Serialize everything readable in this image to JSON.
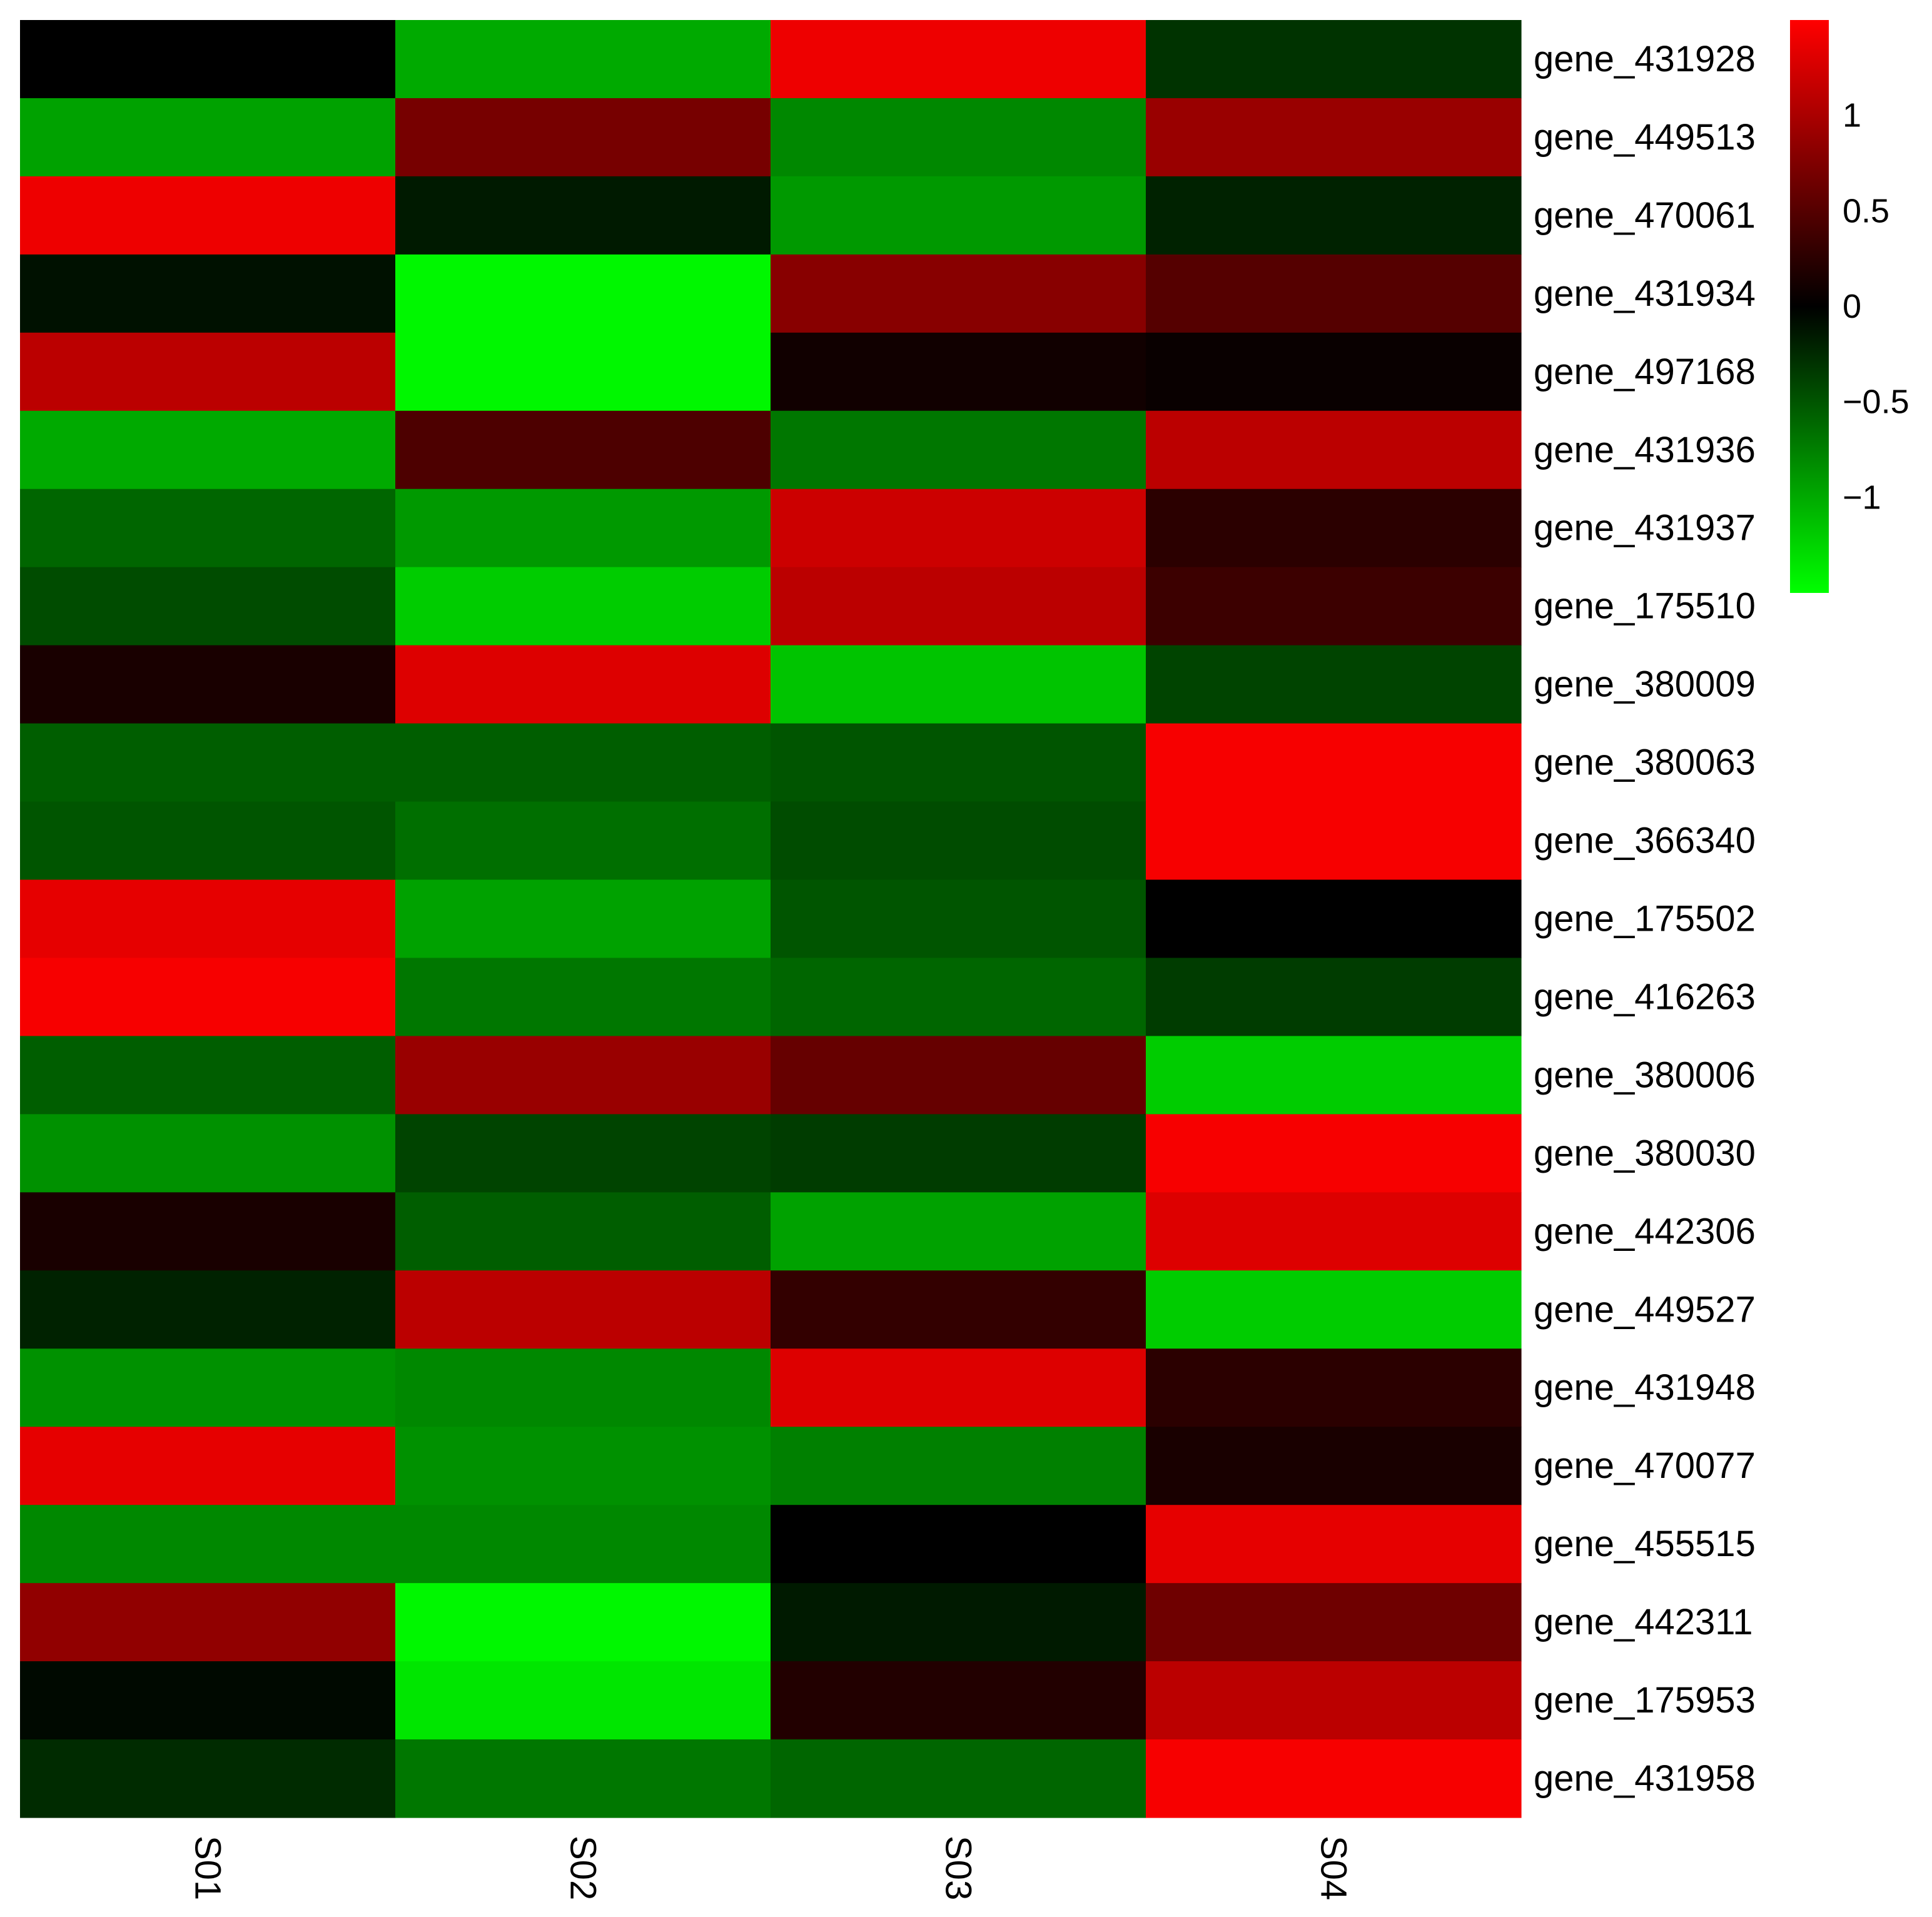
{
  "chart_data": {
    "type": "heatmap",
    "title": "",
    "xlabel": "",
    "ylabel": "",
    "columns": [
      "S01",
      "S02",
      "S03",
      "S04"
    ],
    "rows": [
      "gene_431928",
      "gene_449513",
      "gene_470061",
      "gene_431934",
      "gene_497168",
      "gene_431936",
      "gene_431937",
      "gene_175510",
      "gene_380009",
      "gene_380063",
      "gene_366340",
      "gene_175502",
      "gene_416263",
      "gene_380006",
      "gene_380030",
      "gene_442306",
      "gene_449527",
      "gene_431948",
      "gene_470077",
      "gene_455515",
      "gene_442311",
      "gene_175953",
      "gene_431958"
    ],
    "values": [
      [
        0.0,
        -1.0,
        1.4,
        -0.3
      ],
      [
        -0.95,
        0.7,
        -0.8,
        0.9
      ],
      [
        1.4,
        -0.15,
        -0.9,
        -0.2
      ],
      [
        -0.1,
        -1.45,
        0.8,
        0.5
      ],
      [
        1.1,
        -1.45,
        0.1,
        0.05
      ],
      [
        -1.0,
        0.45,
        -0.7,
        1.1
      ],
      [
        -0.6,
        -0.9,
        1.2,
        0.25
      ],
      [
        -0.45,
        -1.2,
        1.1,
        0.35
      ],
      [
        0.15,
        1.3,
        -1.15,
        -0.4
      ],
      [
        -0.55,
        -0.55,
        -0.5,
        1.45
      ],
      [
        -0.5,
        -0.65,
        -0.45,
        1.45
      ],
      [
        1.35,
        -0.95,
        -0.5,
        0.0
      ],
      [
        1.45,
        -0.7,
        -0.6,
        -0.35
      ],
      [
        -0.55,
        0.9,
        0.6,
        -1.2
      ],
      [
        -0.85,
        -0.4,
        -0.35,
        1.45
      ],
      [
        0.15,
        -0.55,
        -0.95,
        1.3
      ],
      [
        -0.2,
        1.1,
        0.3,
        -1.2
      ],
      [
        -0.85,
        -0.8,
        1.3,
        0.25
      ],
      [
        1.35,
        -0.85,
        -0.75,
        0.15
      ],
      [
        -0.8,
        -0.8,
        0.0,
        1.35
      ],
      [
        0.85,
        -1.45,
        -0.15,
        0.65
      ],
      [
        -0.05,
        -1.35,
        0.2,
        1.1
      ],
      [
        -0.25,
        -0.7,
        -0.6,
        1.45
      ]
    ],
    "color_scale": {
      "min": -1.5,
      "max": 1.5,
      "low_color": "#00ff00",
      "mid_color": "#000000",
      "high_color": "#ff0000"
    },
    "legend": {
      "placement": "top-right",
      "tick_labels": [
        "1",
        "0.5",
        "0",
        "−0.5",
        "−1"
      ],
      "tick_values": [
        1,
        0.5,
        0,
        -0.5,
        -1
      ]
    },
    "grid": false
  }
}
